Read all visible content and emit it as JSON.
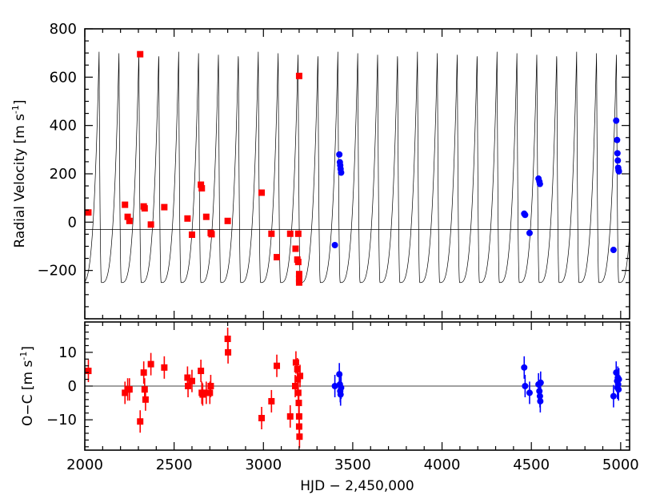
{
  "chart_data": [
    {
      "type": "scatter",
      "panel": "top",
      "ylabel_main": "Radial Velocity",
      "ylabel_unit": "[m s",
      "ylabel_sup": "-1",
      "ylabel_close": "]",
      "xlim": [
        2000,
        5050
      ],
      "ylim": [
        -400,
        800
      ],
      "x_ticks": [
        2000,
        2500,
        3000,
        3500,
        4000,
        4500,
        5000
      ],
      "y_ticks": [
        -200,
        0,
        200,
        400,
        600,
        800
      ],
      "y_tick_labels": [
        "−200",
        "0",
        "200",
        "400",
        "600",
        "800"
      ],
      "zero_line": -30,
      "model": {
        "period_days": 111.4,
        "first_peak": 2080,
        "max": 705,
        "min": -250,
        "color": "#000000"
      },
      "series": [
        {
          "marker": "square",
          "color": "#ff0000",
          "x": [
            2020,
            2225,
            2240,
            2250,
            2330,
            2335,
            2370,
            2445,
            2575,
            2600,
            2650,
            2655,
            2680,
            2705,
            2710,
            2800,
            2990,
            3045,
            3075,
            3150,
            3180,
            3190,
            3195,
            3200,
            3200,
            3200,
            3200,
            3195,
            2310
          ],
          "y": [
            40,
            72,
            22,
            5,
            65,
            57,
            -10,
            62,
            15,
            -52,
            155,
            140,
            22,
            -45,
            -50,
            5,
            122,
            -48,
            -145,
            -48,
            -110,
            -155,
            -165,
            605,
            -215,
            -235,
            -250,
            -48,
            695
          ]
        },
        {
          "marker": "circle",
          "color": "#0000ff",
          "x": [
            3400,
            3425,
            3428,
            3430,
            3432,
            3435,
            4460,
            4465,
            4490,
            4540,
            4545,
            4548,
            4960,
            4975,
            4980,
            4982,
            4984,
            4986,
            4988,
            4990
          ],
          "y": [
            -95,
            280,
            248,
            235,
            220,
            205,
            35,
            30,
            -45,
            180,
            168,
            158,
            -115,
            420,
            340,
            285,
            255,
            225,
            215,
            210
          ]
        }
      ]
    },
    {
      "type": "scatter",
      "panel": "bottom",
      "xlabel": "HJD − 2,450,000",
      "ylabel_main": "O−C",
      "ylabel_unit": "[m s",
      "ylabel_sup": "-1",
      "ylabel_close": "]",
      "xlim": [
        2000,
        5050
      ],
      "ylim": [
        -19,
        19
      ],
      "x_ticks": [
        2000,
        2500,
        3000,
        3500,
        4000,
        4500,
        5000
      ],
      "y_ticks": [
        -10,
        0,
        10
      ],
      "y_tick_labels": [
        "−10",
        "0",
        "10"
      ],
      "zero_line": 0,
      "series": [
        {
          "marker": "square",
          "color": "#ff0000",
          "x": [
            2020,
            2225,
            2240,
            2250,
            2310,
            2330,
            2335,
            2340,
            2370,
            2445,
            2575,
            2578,
            2600,
            2650,
            2655,
            2660,
            2680,
            2700,
            2705,
            2800,
            2802,
            2990,
            3045,
            3075,
            3150,
            3178,
            3182,
            3190,
            3192,
            3195,
            3198,
            3200,
            3200,
            3202,
            3205
          ],
          "y": [
            4.5,
            -2,
            -1,
            -1,
            -10.5,
            4,
            -1,
            -4,
            6.5,
            5.5,
            2.5,
            0,
            1.5,
            4.5,
            -2,
            -2.5,
            -2,
            -2,
            0,
            14,
            10,
            -9.5,
            -4.5,
            6,
            -9,
            0,
            7,
            5,
            2,
            -2,
            -5,
            -9,
            -12,
            -15,
            3
          ]
        },
        {
          "marker": "circle",
          "color": "#0000ff",
          "x": [
            3400,
            3425,
            3428,
            3430,
            3432,
            3435,
            4460,
            4465,
            4490,
            4540,
            4545,
            4548,
            4550,
            4552,
            4960,
            4975,
            4980,
            4982,
            4984,
            4986,
            4988,
            4990
          ],
          "y": [
            0,
            3.5,
            0.5,
            -1.5,
            -2.5,
            -0.5,
            5.5,
            0,
            -2,
            0.5,
            -1.5,
            -3,
            -4.5,
            1,
            -3,
            4,
            1.5,
            -0.5,
            2.5,
            0.5,
            -1,
            2
          ]
        }
      ]
    }
  ]
}
